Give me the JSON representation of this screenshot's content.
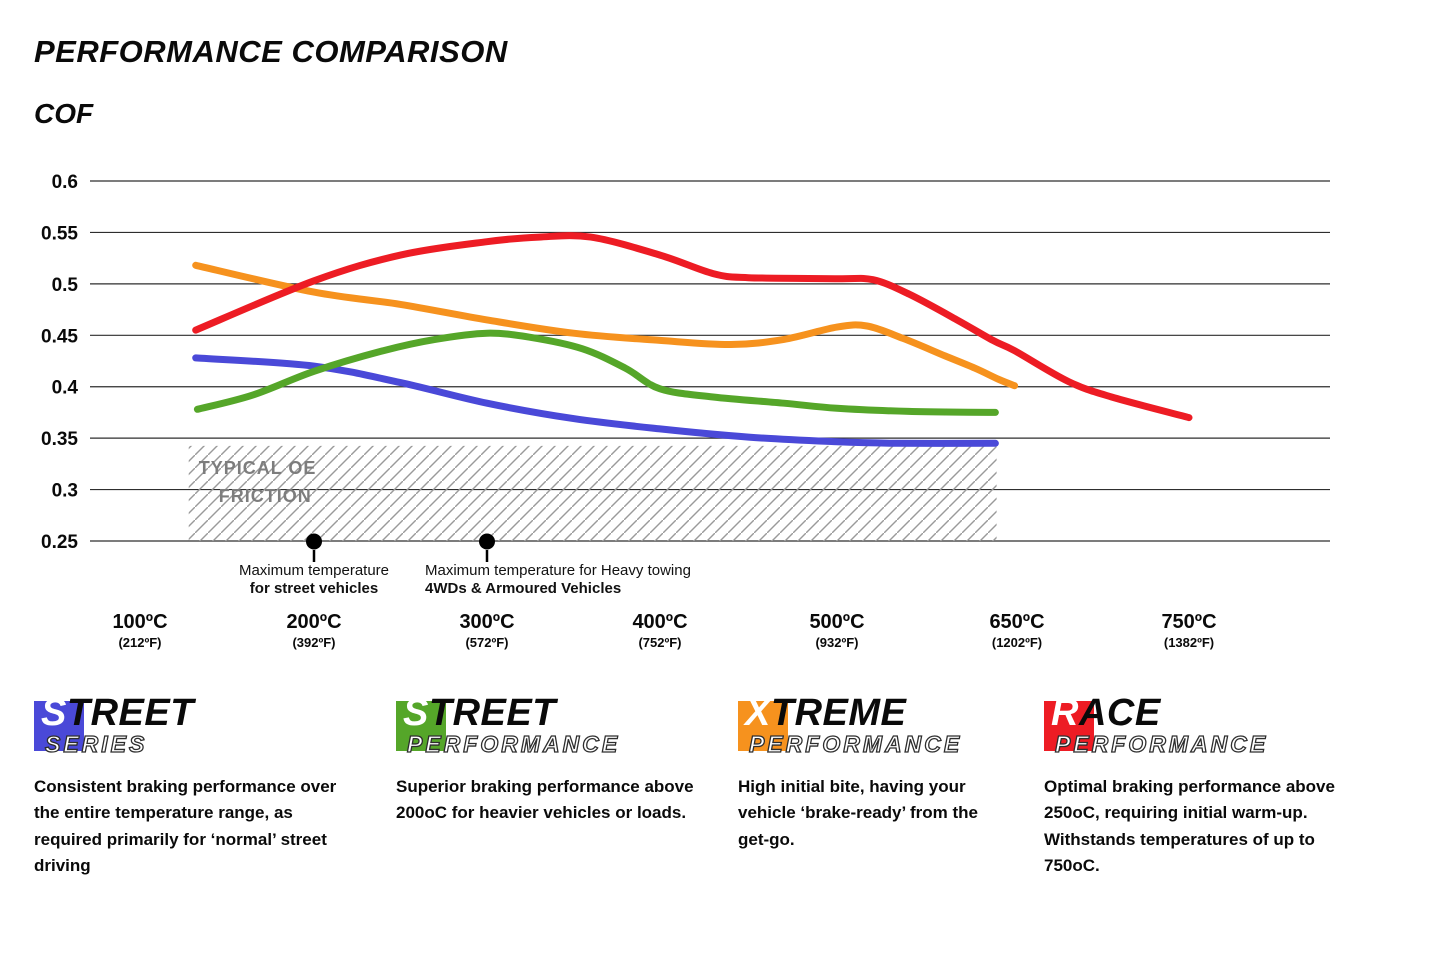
{
  "chart_data": {
    "type": "line",
    "title": "PERFORMANCE COMPARISON",
    "ylabel": "COF",
    "ylim": [
      0.25,
      0.6
    ],
    "grid": "horizontal",
    "legend_position": "bottom",
    "y_ticks": [
      "0.6",
      "0.55",
      "0.5",
      "0.45",
      "0.4",
      "0.35",
      "0.3",
      "0.25"
    ],
    "x_categories": [
      {
        "temp": 100,
        "label": "100ºC",
        "sub": "(212ºF)"
      },
      {
        "temp": 200,
        "label": "200ºC",
        "sub": "(392ºF)"
      },
      {
        "temp": 300,
        "label": "300ºC",
        "sub": "(572ºF)"
      },
      {
        "temp": 400,
        "label": "400ºC",
        "sub": "(752ºF)"
      },
      {
        "temp": 500,
        "label": "500ºC",
        "sub": "(932ºF)"
      },
      {
        "temp": 650,
        "label": "650ºC",
        "sub": "(1202ºF)"
      },
      {
        "temp": 750,
        "label": "750ºC",
        "sub": "(1382ºF)"
      }
    ],
    "series": [
      {
        "name": "Street Series",
        "color": "#4a49d8",
        "points": [
          [
            132,
            0.428
          ],
          [
            200,
            0.42
          ],
          [
            250,
            0.404
          ],
          [
            300,
            0.384
          ],
          [
            350,
            0.369
          ],
          [
            400,
            0.359
          ],
          [
            450,
            0.351
          ],
          [
            500,
            0.3465
          ],
          [
            550,
            0.345
          ],
          [
            632,
            0.345
          ]
        ]
      },
      {
        "name": "Street Performance",
        "color": "#55a629",
        "points": [
          [
            133,
            0.378
          ],
          [
            165,
            0.392
          ],
          [
            200,
            0.415
          ],
          [
            240,
            0.435
          ],
          [
            270,
            0.446
          ],
          [
            300,
            0.452
          ],
          [
            325,
            0.448
          ],
          [
            355,
            0.437
          ],
          [
            380,
            0.418
          ],
          [
            400,
            0.398
          ],
          [
            430,
            0.39
          ],
          [
            470,
            0.384
          ],
          [
            500,
            0.379
          ],
          [
            560,
            0.376
          ],
          [
            632,
            0.375
          ]
        ]
      },
      {
        "name": "Xtreme Performance",
        "color": "#f6921e",
        "points": [
          [
            132,
            0.518
          ],
          [
            200,
            0.492
          ],
          [
            250,
            0.48
          ],
          [
            300,
            0.465
          ],
          [
            350,
            0.452
          ],
          [
            400,
            0.445
          ],
          [
            440,
            0.441
          ],
          [
            470,
            0.446
          ],
          [
            500,
            0.458
          ],
          [
            525,
            0.459
          ],
          [
            555,
            0.447
          ],
          [
            590,
            0.43
          ],
          [
            615,
            0.418
          ],
          [
            635,
            0.407
          ],
          [
            648,
            0.401
          ]
        ]
      },
      {
        "name": "Race Performance",
        "color": "#ed1c24",
        "points": [
          [
            132,
            0.455
          ],
          [
            200,
            0.503
          ],
          [
            250,
            0.528
          ],
          [
            300,
            0.541
          ],
          [
            330,
            0.5455
          ],
          [
            360,
            0.5455
          ],
          [
            400,
            0.528
          ],
          [
            430,
            0.51
          ],
          [
            450,
            0.506
          ],
          [
            500,
            0.505
          ],
          [
            530,
            0.504
          ],
          [
            560,
            0.49
          ],
          [
            600,
            0.465
          ],
          [
            630,
            0.445
          ],
          [
            648,
            0.435
          ],
          [
            680,
            0.405
          ],
          [
            705,
            0.39
          ],
          [
            750,
            0.37
          ]
        ]
      }
    ],
    "oe_friction_band": {
      "label": [
        "TYPICAL OE",
        "FRICTION"
      ],
      "temp_range": [
        128,
        633
      ],
      "cof_range": [
        0.25,
        0.3425
      ]
    },
    "annotations": [
      {
        "temp": 200,
        "line1": "Maximum temperature",
        "line2": "for street vehicles",
        "align": "center"
      },
      {
        "temp": 300,
        "line1": "Maximum temperature for Heavy towing",
        "line2": "4WDs & Armoured Vehicles",
        "align": "left"
      }
    ]
  },
  "legend": [
    {
      "word1_initial": "S",
      "word1_rest": "TREET",
      "word2": "SERIES",
      "color": "#4a49d8",
      "description": "Consistent braking performance over the entire temperature range, as required primarily for ‘normal’ street driving"
    },
    {
      "word1_initial": "S",
      "word1_rest": "TREET",
      "word2": "PERFORMANCE",
      "color": "#55a629",
      "description": "Superior braking performance above 200oC for heavier vehicles or loads."
    },
    {
      "word1_initial": "X",
      "word1_rest": "TREME",
      "word2": "PERFORMANCE",
      "color": "#f6921e",
      "description": "High initial bite, having your vehicle ‘brake-ready’ from the get-go."
    },
    {
      "word1_initial": "R",
      "word1_rest": "ACE",
      "word2": "PERFORMANCE",
      "color": "#ed1c24",
      "description": "Optimal braking performance above 250oC, requiring initial warm-up. Withstands temperatures of up to 750oC."
    }
  ]
}
